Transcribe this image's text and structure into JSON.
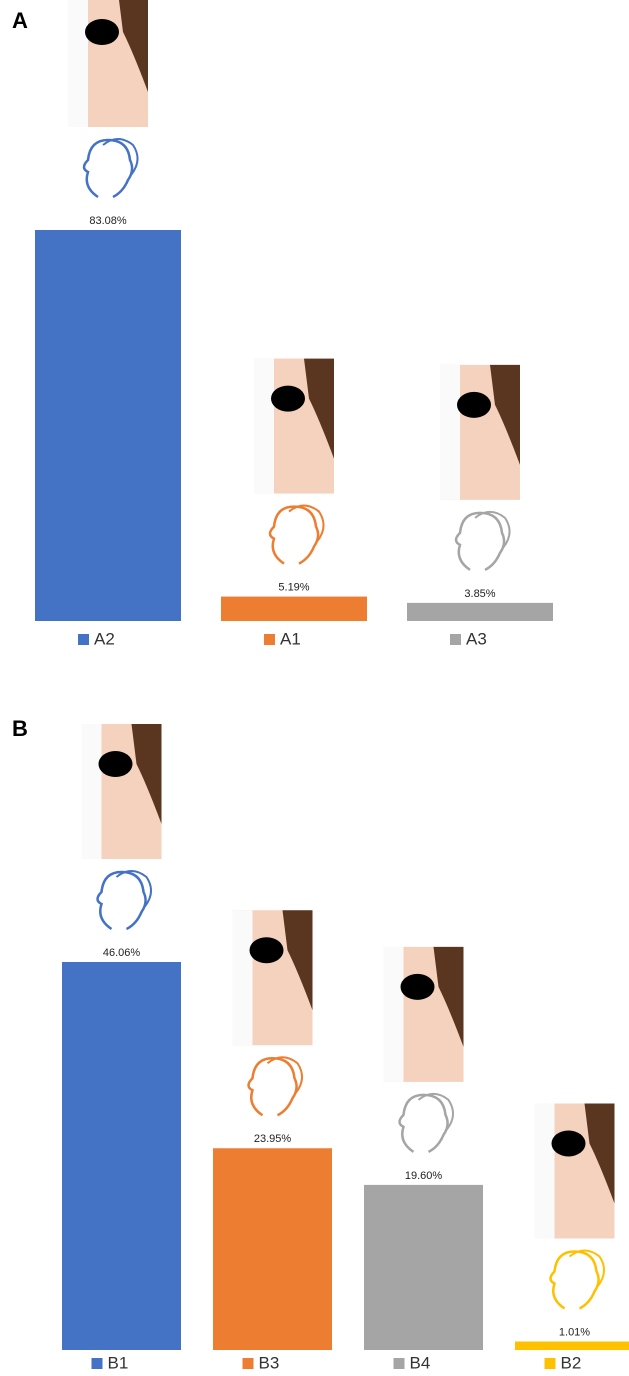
{
  "chart_data": [
    {
      "type": "bar",
      "panel": "A",
      "categories": [
        "A2",
        "A1",
        "A3"
      ],
      "values": [
        83.08,
        5.19,
        3.85
      ],
      "value_labels": [
        "83.08%",
        "5.19%",
        "3.85%"
      ],
      "colors": [
        "#4472c4",
        "#ed7d31",
        "#a5a5a5"
      ]
    },
    {
      "type": "bar",
      "panel": "B",
      "categories": [
        "B1",
        "B3",
        "B4",
        "B2"
      ],
      "values": [
        46.06,
        23.95,
        19.6,
        1.01
      ],
      "value_labels": [
        "46.06%",
        "23.95%",
        "19.60%",
        "1.01%"
      ],
      "colors": [
        "#4472c4",
        "#ed7d31",
        "#a5a5a5",
        "#ffc000"
      ]
    }
  ]
}
